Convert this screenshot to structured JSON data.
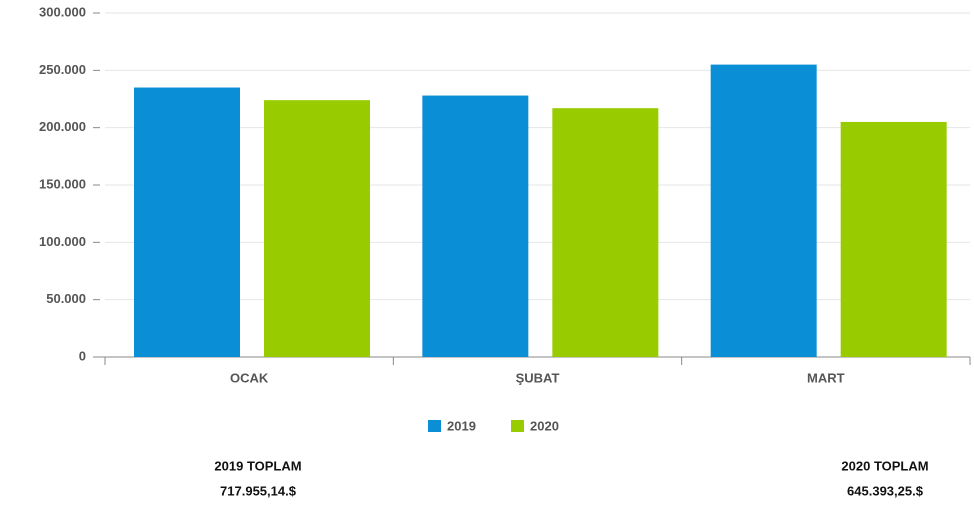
{
  "chart_data": {
    "type": "bar",
    "categories": [
      "OCAK",
      "ŞUBAT",
      "MART"
    ],
    "series": [
      {
        "name": "2019",
        "color": "#0a8fd6",
        "values": [
          235000,
          228000,
          255000
        ]
      },
      {
        "name": "2020",
        "color": "#99cc00",
        "values": [
          224000,
          217000,
          205000
        ]
      }
    ],
    "ylim": [
      0,
      300000
    ],
    "yticks": [
      0,
      {
        "value": 50000,
        "label": "50.000"
      },
      {
        "value": 100000,
        "label": "100.000"
      },
      {
        "value": 150000,
        "label": "150.000"
      },
      {
        "value": 200000,
        "label": "200.000"
      },
      {
        "value": 250000,
        "label": "250.000"
      },
      {
        "value": 300000,
        "label": "300.000"
      }
    ],
    "grid": true,
    "legend": "bottom",
    "annotations": [
      {
        "title": "2019 TOPLAM",
        "value": "717.955,14.$"
      },
      {
        "title": "2020 TOPLAM",
        "value": "645.393,25.$"
      }
    ]
  }
}
